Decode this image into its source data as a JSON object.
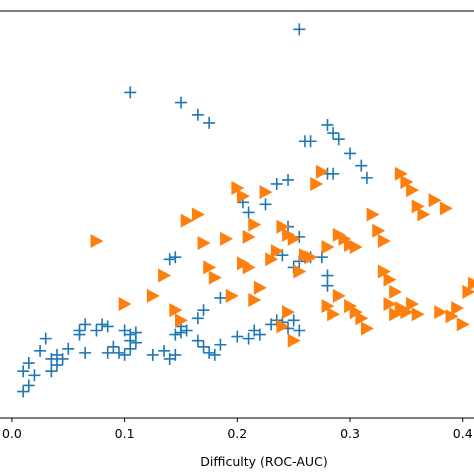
{
  "chart_data": {
    "type": "scatter",
    "title": "",
    "xlabel": "Difficulty (ROC-AUC)",
    "ylabel": "",
    "xlim": [
      -0.015,
      0.41
    ],
    "ylim": [
      0,
      1
    ],
    "xticks": [
      0.0,
      0.1,
      0.2,
      0.3,
      0.4
    ],
    "xtick_labels": [
      "0.0",
      "0.1",
      "0.2",
      "0.3",
      "0.4"
    ],
    "grid": false,
    "series": [
      {
        "marker": "plus",
        "color": "#1f77b4",
        "points": [
          [
            0.01,
            0.065
          ],
          [
            0.015,
            0.08
          ],
          [
            0.02,
            0.105
          ],
          [
            0.01,
            0.115
          ],
          [
            0.015,
            0.135
          ],
          [
            0.025,
            0.165
          ],
          [
            0.03,
            0.195
          ],
          [
            0.035,
            0.115
          ],
          [
            0.04,
            0.13
          ],
          [
            0.045,
            0.145
          ],
          [
            0.035,
            0.145
          ],
          [
            0.04,
            0.155
          ],
          [
            0.05,
            0.17
          ],
          [
            0.06,
            0.205
          ],
          [
            0.06,
            0.215
          ],
          [
            0.065,
            0.23
          ],
          [
            0.075,
            0.215
          ],
          [
            0.08,
            0.23
          ],
          [
            0.085,
            0.225
          ],
          [
            0.065,
            0.16
          ],
          [
            0.085,
            0.16
          ],
          [
            0.09,
            0.175
          ],
          [
            0.095,
            0.16
          ],
          [
            0.1,
            0.155
          ],
          [
            0.105,
            0.17
          ],
          [
            0.1,
            0.215
          ],
          [
            0.105,
            0.205
          ],
          [
            0.11,
            0.21
          ],
          [
            0.105,
            0.19
          ],
          [
            0.11,
            0.185
          ],
          [
            0.125,
            0.155
          ],
          [
            0.135,
            0.165
          ],
          [
            0.14,
            0.145
          ],
          [
            0.145,
            0.155
          ],
          [
            0.145,
            0.205
          ],
          [
            0.15,
            0.21
          ],
          [
            0.15,
            0.225
          ],
          [
            0.155,
            0.215
          ],
          [
            0.165,
            0.19
          ],
          [
            0.17,
            0.175
          ],
          [
            0.175,
            0.16
          ],
          [
            0.18,
            0.155
          ],
          [
            0.185,
            0.18
          ],
          [
            0.165,
            0.245
          ],
          [
            0.17,
            0.265
          ],
          [
            0.185,
            0.295
          ],
          [
            0.14,
            0.39
          ],
          [
            0.145,
            0.395
          ],
          [
            0.2,
            0.2
          ],
          [
            0.21,
            0.195
          ],
          [
            0.215,
            0.215
          ],
          [
            0.22,
            0.205
          ],
          [
            0.23,
            0.23
          ],
          [
            0.235,
            0.24
          ],
          [
            0.245,
            0.22
          ],
          [
            0.25,
            0.24
          ],
          [
            0.255,
            0.215
          ],
          [
            0.24,
            0.235
          ],
          [
            0.24,
            0.4
          ],
          [
            0.25,
            0.37
          ],
          [
            0.255,
            0.385
          ],
          [
            0.26,
            0.395
          ],
          [
            0.265,
            0.395
          ],
          [
            0.275,
            0.395
          ],
          [
            0.28,
            0.35
          ],
          [
            0.28,
            0.325
          ],
          [
            0.205,
            0.53
          ],
          [
            0.21,
            0.505
          ],
          [
            0.225,
            0.525
          ],
          [
            0.245,
            0.47
          ],
          [
            0.255,
            0.445
          ],
          [
            0.235,
            0.575
          ],
          [
            0.245,
            0.585
          ],
          [
            0.26,
            0.68
          ],
          [
            0.265,
            0.68
          ],
          [
            0.28,
            0.72
          ],
          [
            0.285,
            0.7
          ],
          [
            0.29,
            0.685
          ],
          [
            0.15,
            0.775
          ],
          [
            0.165,
            0.745
          ],
          [
            0.175,
            0.725
          ],
          [
            0.105,
            0.8
          ],
          [
            0.255,
            0.955
          ],
          [
            0.28,
            0.6
          ],
          [
            0.285,
            0.6
          ],
          [
            0.3,
            0.65
          ],
          [
            0.31,
            0.62
          ],
          [
            0.315,
            0.59
          ]
        ]
      },
      {
        "marker": "triangle-right",
        "color": "#ff7f0e",
        "points": [
          [
            0.075,
            0.435
          ],
          [
            0.1,
            0.28
          ],
          [
            0.125,
            0.3
          ],
          [
            0.135,
            0.35
          ],
          [
            0.145,
            0.265
          ],
          [
            0.15,
            0.24
          ],
          [
            0.155,
            0.485
          ],
          [
            0.165,
            0.5
          ],
          [
            0.17,
            0.43
          ],
          [
            0.175,
            0.37
          ],
          [
            0.18,
            0.345
          ],
          [
            0.19,
            0.44
          ],
          [
            0.195,
            0.3
          ],
          [
            0.2,
            0.565
          ],
          [
            0.205,
            0.545
          ],
          [
            0.205,
            0.38
          ],
          [
            0.21,
            0.37
          ],
          [
            0.21,
            0.445
          ],
          [
            0.215,
            0.475
          ],
          [
            0.215,
            0.29
          ],
          [
            0.22,
            0.32
          ],
          [
            0.225,
            0.555
          ],
          [
            0.23,
            0.39
          ],
          [
            0.235,
            0.41
          ],
          [
            0.24,
            0.47
          ],
          [
            0.245,
            0.45
          ],
          [
            0.25,
            0.44
          ],
          [
            0.24,
            0.225
          ],
          [
            0.245,
            0.26
          ],
          [
            0.25,
            0.19
          ],
          [
            0.255,
            0.36
          ],
          [
            0.26,
            0.4
          ],
          [
            0.265,
            0.395
          ],
          [
            0.27,
            0.575
          ],
          [
            0.275,
            0.605
          ],
          [
            0.28,
            0.42
          ],
          [
            0.29,
            0.45
          ],
          [
            0.295,
            0.44
          ],
          [
            0.3,
            0.425
          ],
          [
            0.305,
            0.42
          ],
          [
            0.28,
            0.275
          ],
          [
            0.285,
            0.255
          ],
          [
            0.29,
            0.3
          ],
          [
            0.3,
            0.275
          ],
          [
            0.305,
            0.26
          ],
          [
            0.31,
            0.245
          ],
          [
            0.315,
            0.22
          ],
          [
            0.32,
            0.5
          ],
          [
            0.325,
            0.46
          ],
          [
            0.33,
            0.435
          ],
          [
            0.335,
            0.34
          ],
          [
            0.34,
            0.31
          ],
          [
            0.33,
            0.36
          ],
          [
            0.335,
            0.28
          ],
          [
            0.34,
            0.255
          ],
          [
            0.345,
            0.27
          ],
          [
            0.35,
            0.26
          ],
          [
            0.355,
            0.28
          ],
          [
            0.36,
            0.255
          ],
          [
            0.38,
            0.26
          ],
          [
            0.39,
            0.25
          ],
          [
            0.395,
            0.27
          ],
          [
            0.4,
            0.23
          ],
          [
            0.405,
            0.31
          ],
          [
            0.41,
            0.33
          ],
          [
            0.345,
            0.6
          ],
          [
            0.35,
            0.58
          ],
          [
            0.355,
            0.56
          ],
          [
            0.36,
            0.52
          ],
          [
            0.365,
            0.5
          ],
          [
            0.375,
            0.535
          ],
          [
            0.385,
            0.515
          ]
        ]
      }
    ]
  }
}
